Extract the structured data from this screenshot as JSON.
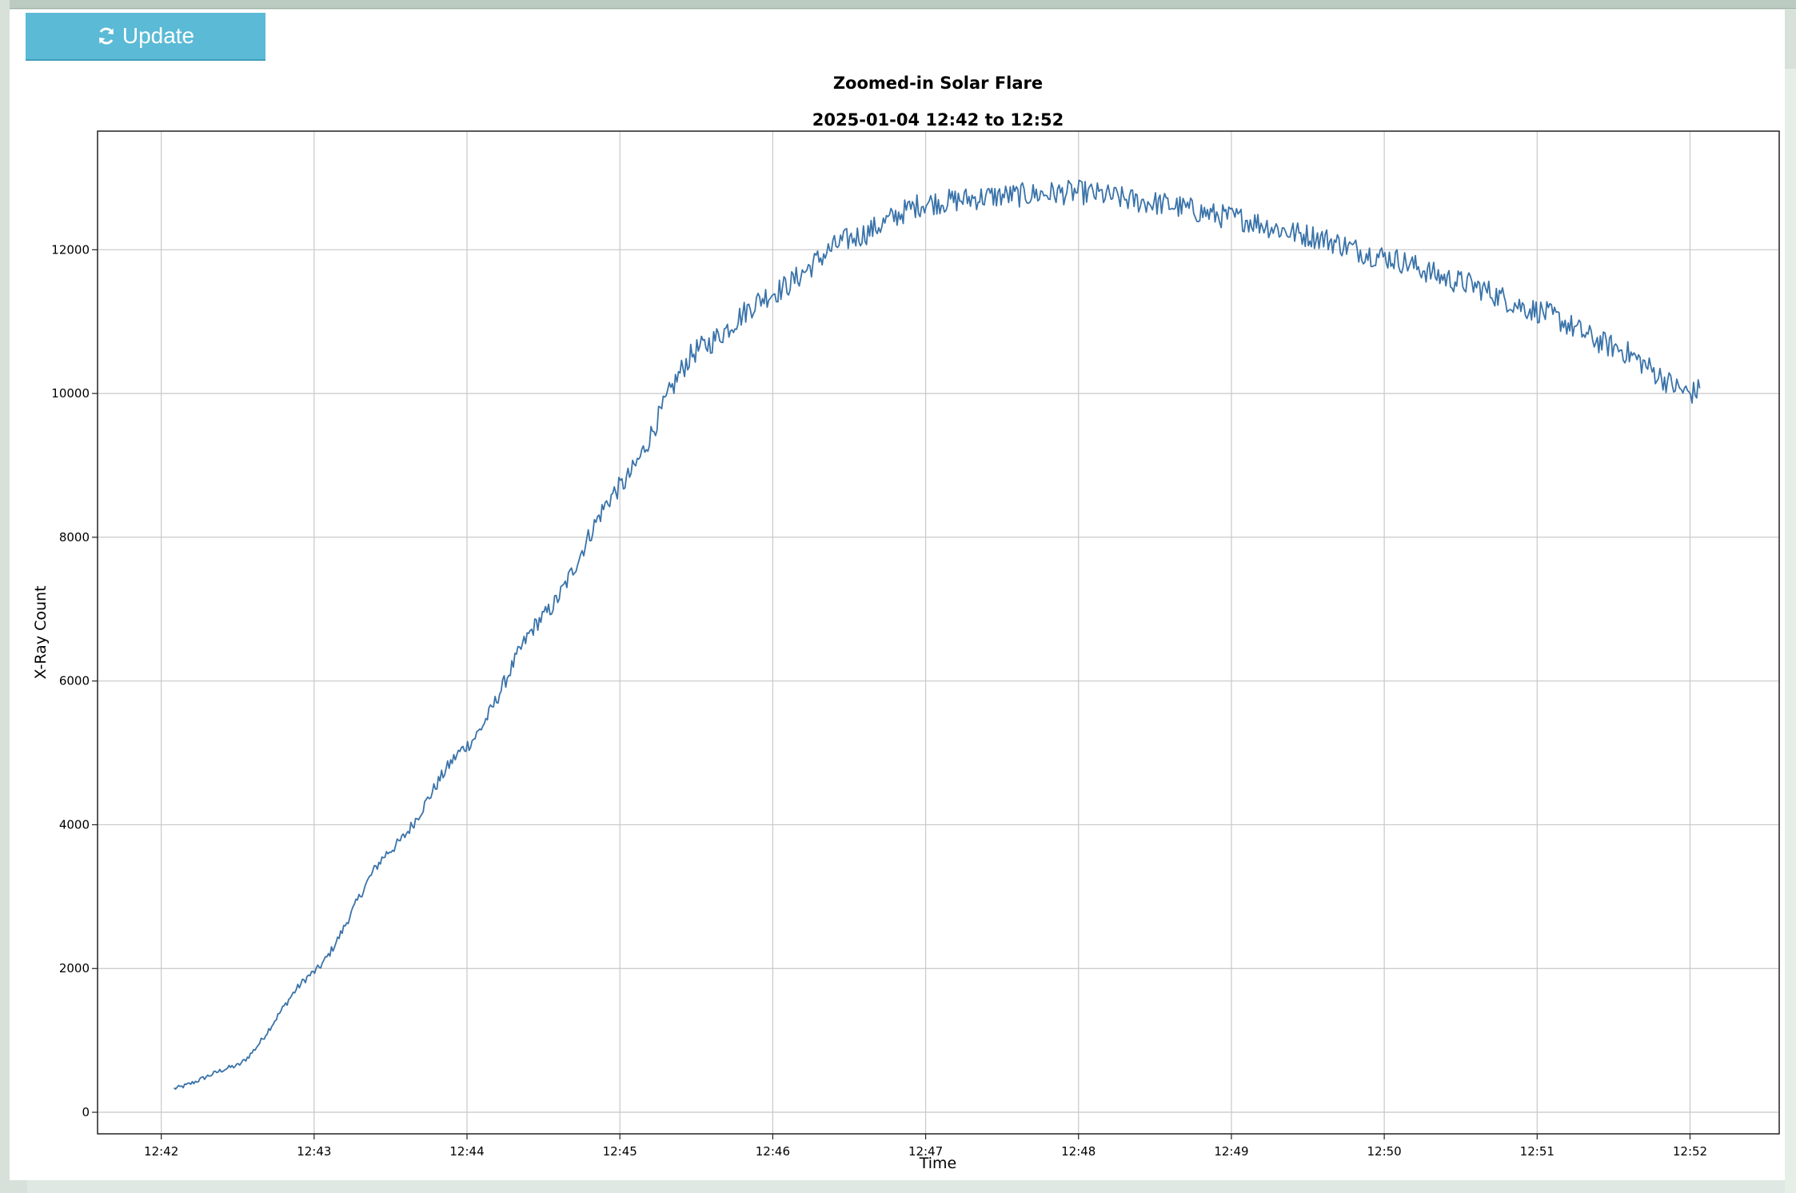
{
  "toolbar": {
    "update_label": "Update",
    "update_icon": "refresh-icon",
    "button_color": "#5bbad5"
  },
  "chart_data": {
    "type": "line",
    "title": "Zoomed-in Solar Flare",
    "subtitle": "2025-01-04 12:42 to 12:52",
    "xlabel": "Time",
    "ylabel": "X-Ray Count",
    "x_ticks": [
      "12:42",
      "12:43",
      "12:44",
      "12:45",
      "12:46",
      "12:47",
      "12:48",
      "12:49",
      "12:50",
      "12:51",
      "12:52"
    ],
    "y_ticks": [
      0,
      2000,
      4000,
      6000,
      8000,
      10000,
      12000
    ],
    "xlim": [
      "12:41:35",
      "12:52:35"
    ],
    "ylim": [
      -300,
      13650
    ],
    "grid": true,
    "line_color": "#3a73a9",
    "series": [
      {
        "x": [
          "12:42:05",
          "12:42:30",
          "12:43:00",
          "12:43:30",
          "12:44:00",
          "12:44:30",
          "12:45:00",
          "12:45:30",
          "12:46:00",
          "12:46:30",
          "12:47:00",
          "12:47:30",
          "12:48:00",
          "12:48:30",
          "12:49:00",
          "12:49:30",
          "12:50:00",
          "12:50:30",
          "12:51:00",
          "12:51:30",
          "12:52:00",
          "12:52:04"
        ],
        "values": [
          330,
          650,
          1950,
          3650,
          5100,
          6900,
          8700,
          10600,
          11400,
          12150,
          12650,
          12750,
          12800,
          12650,
          12450,
          12200,
          11900,
          11550,
          11150,
          10650,
          10000,
          10050
        ]
      }
    ]
  }
}
